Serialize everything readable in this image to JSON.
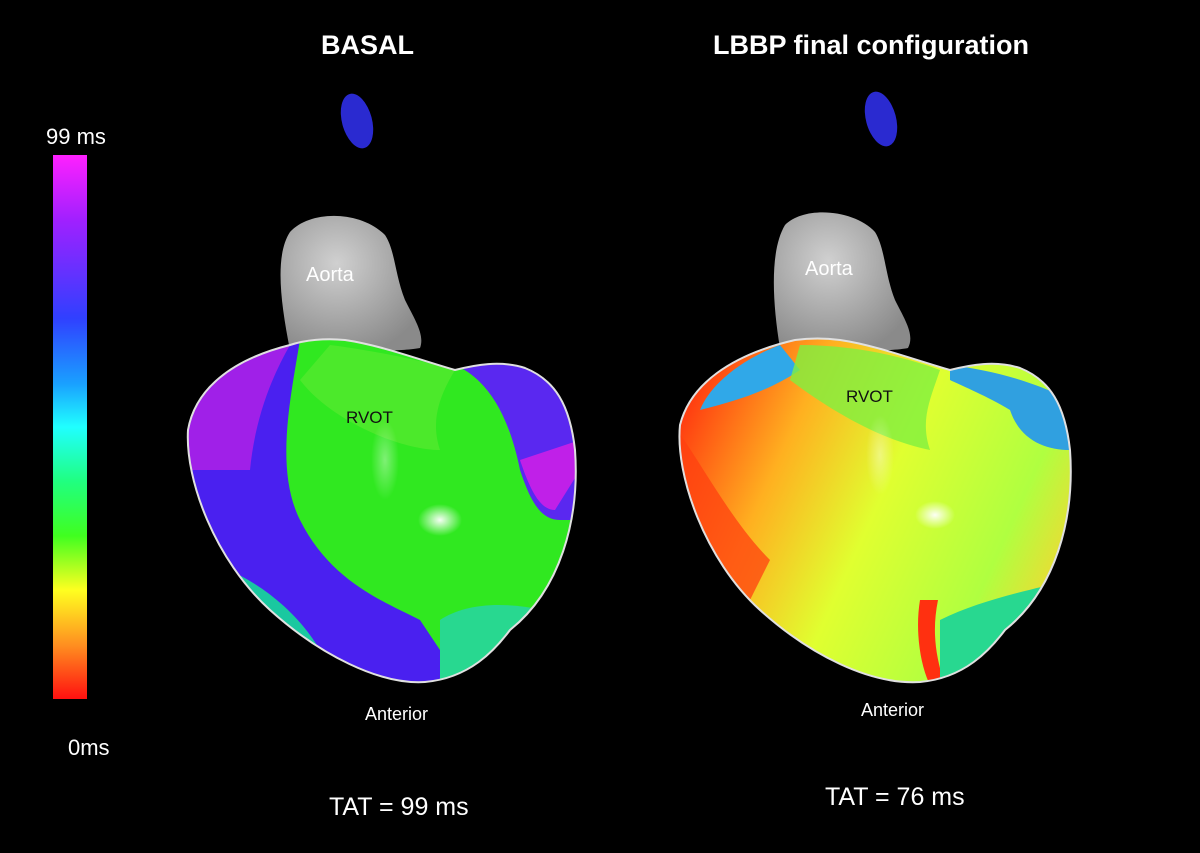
{
  "scale": {
    "max_label": "99 ms",
    "min_label": "0ms"
  },
  "panels": [
    {
      "title": "BASAL",
      "aorta_label": "Aorta",
      "rvot_label": "RVOT",
      "view_label": "Anterior",
      "tat_label": "TAT = 99 ms"
    },
    {
      "title": "LBBP final configuration",
      "aorta_label": "Aorta",
      "rvot_label": "RVOT",
      "view_label": "Anterior",
      "tat_label": "TAT = 76 ms"
    }
  ],
  "colors": {
    "background": "#000000",
    "aorta": "#b8b8b8",
    "marker": "#2a2ad0",
    "early": "#ff1010",
    "late": "#ff20ff"
  }
}
